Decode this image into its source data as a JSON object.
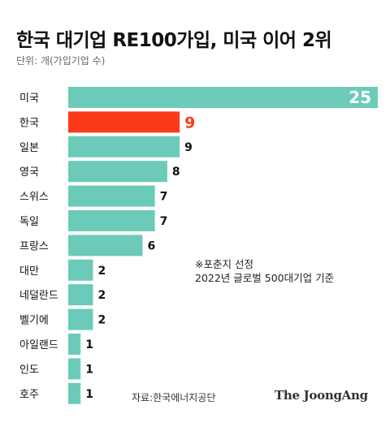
{
  "title": "한국 대기업 RE100가입, 미국 이어 2위",
  "unit": "단위: 개(가입기업 수)",
  "note": [
    "※포춘지 선정",
    "2022년 글로벌 500대기업 기준"
  ],
  "source": "자료:한국에너지공단",
  "logo": "The JoongAng",
  "colors": {
    "bar": "#6ccbb8",
    "highlight": "#fb3a1a",
    "text": "#111111"
  },
  "chart_data": {
    "type": "bar",
    "orientation": "horizontal",
    "categories": [
      "미국",
      "한국",
      "일본",
      "영국",
      "스위스",
      "독일",
      "프랑스",
      "대만",
      "네덜란드",
      "벨기에",
      "아일랜드",
      "인도",
      "호주"
    ],
    "values": [
      25,
      9,
      9,
      8,
      7,
      7,
      6,
      2,
      2,
      2,
      1,
      1,
      1
    ],
    "highlight": "한국",
    "xlim": [
      0,
      25
    ],
    "grid": false,
    "legend": "none"
  }
}
